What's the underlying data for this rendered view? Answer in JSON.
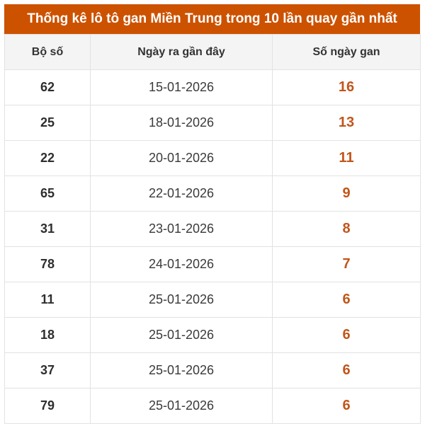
{
  "title": "Thống kê lô tô gan Miền Trung trong 10 lần quay gần nhất",
  "colors": {
    "title_bg": "#cc5200",
    "title_text": "#ffffff",
    "header_bg": "#f4f4f4",
    "gan_value": "#c0561a",
    "border": "#e2e2e2"
  },
  "table": {
    "headers": [
      "Bộ số",
      "Ngày ra gần đây",
      "Số ngày gan"
    ],
    "rows": [
      {
        "number": "62",
        "last_date": "15-01-2026",
        "days": "16"
      },
      {
        "number": "25",
        "last_date": "18-01-2026",
        "days": "13"
      },
      {
        "number": "22",
        "last_date": "20-01-2026",
        "days": "11"
      },
      {
        "number": "65",
        "last_date": "22-01-2026",
        "days": "9"
      },
      {
        "number": "31",
        "last_date": "23-01-2026",
        "days": "8"
      },
      {
        "number": "78",
        "last_date": "24-01-2026",
        "days": "7"
      },
      {
        "number": "11",
        "last_date": "25-01-2026",
        "days": "6"
      },
      {
        "number": "18",
        "last_date": "25-01-2026",
        "days": "6"
      },
      {
        "number": "37",
        "last_date": "25-01-2026",
        "days": "6"
      },
      {
        "number": "79",
        "last_date": "25-01-2026",
        "days": "6"
      }
    ]
  }
}
